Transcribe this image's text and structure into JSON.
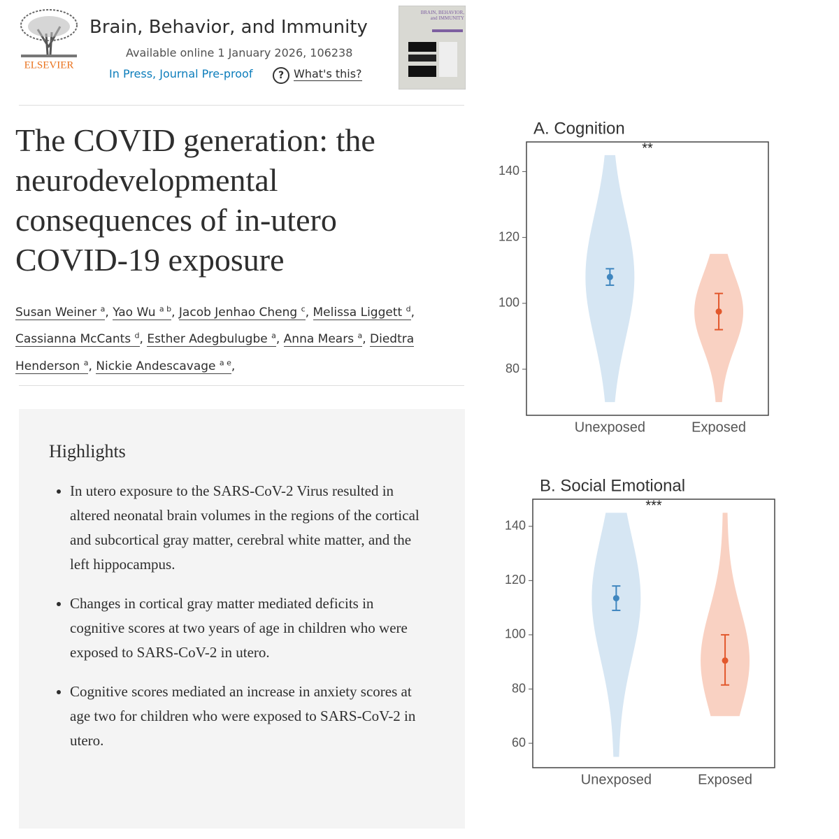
{
  "journal": {
    "publisher": "ELSEVIER",
    "name": "Brain, Behavior, and Immunity",
    "available": "Available online 1 January 2026, 106238",
    "status": "In Press, Journal Pre-proof",
    "help_icon": "?",
    "help": "What's this?",
    "cover_title": "BRAIN, BEHAVIOR, and IMMUNITY"
  },
  "article": {
    "title": "The COVID generation: the neurodevelopmental consequences of in-utero COVID-19 exposure",
    "authors": [
      {
        "name": "Susan Weiner",
        "aff": "a"
      },
      {
        "name": "Yao Wu",
        "aff": "a b"
      },
      {
        "name": "Jacob Jenhao Cheng",
        "aff": "c"
      },
      {
        "name": "Melissa Liggett",
        "aff": "d"
      },
      {
        "name": "Cassianna McCants",
        "aff": "d"
      },
      {
        "name": "Esther Adegbulugbe",
        "aff": "a"
      },
      {
        "name": "Anna Mears",
        "aff": "a"
      },
      {
        "name": "Diedtra Henderson",
        "aff": "a"
      },
      {
        "name": "Nickie Andescavage",
        "aff": "a e"
      }
    ]
  },
  "highlights": {
    "heading": "Highlights",
    "items": [
      "In utero exposure to the SARS-CoV-2 Virus resulted in altered neonatal brain volumes in the regions of the cortical and subcortical gray matter, cerebral white matter, and the left hippocampus.",
      "Changes in cortical gray matter mediated deficits in cognitive scores at two years of age in children who were exposed to SARS-CoV-2 in utero.",
      "Cognitive scores mediated an increase in anxiety scores at age two for children who were exposed to SARS-CoV-2 in utero."
    ]
  },
  "chart_data": [
    {
      "type": "violin",
      "title": "A. Cognition",
      "annotation": "**",
      "categories": [
        "Unexposed",
        "Exposed"
      ],
      "colors": [
        "#3f86bf",
        "#e2582c"
      ],
      "fills": [
        "#d6e6f3",
        "#f9d1c2"
      ],
      "mean": [
        108,
        97.5
      ],
      "ci_low": [
        105.5,
        92
      ],
      "ci_high": [
        110.5,
        103
      ],
      "min": [
        70,
        70
      ],
      "max": [
        145,
        115
      ],
      "ylim": [
        66,
        149
      ],
      "yticks": [
        80,
        100,
        120,
        140
      ]
    },
    {
      "type": "violin",
      "title": "B. Social Emotional",
      "annotation": "***",
      "categories": [
        "Unexposed",
        "Exposed"
      ],
      "colors": [
        "#3f86bf",
        "#e2582c"
      ],
      "fills": [
        "#d6e6f3",
        "#f9d1c2"
      ],
      "mean": [
        113.5,
        90.5
      ],
      "ci_low": [
        109,
        81.5
      ],
      "ci_high": [
        118,
        100
      ],
      "min": [
        55,
        70
      ],
      "max": [
        145,
        145
      ],
      "ylim": [
        51,
        150
      ],
      "yticks": [
        60,
        80,
        100,
        120,
        140
      ]
    }
  ]
}
